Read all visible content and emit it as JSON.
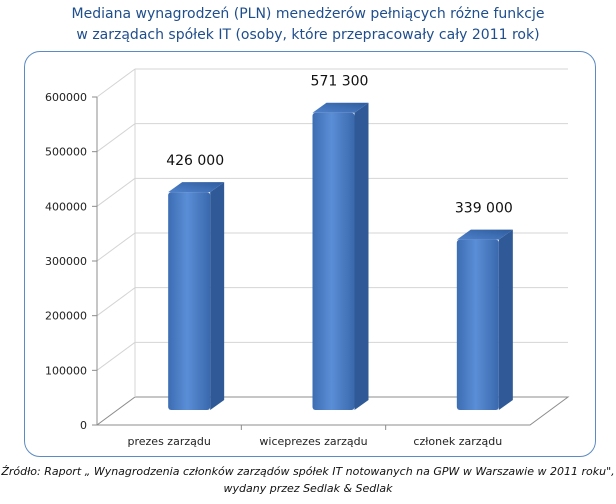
{
  "title_line1": "Mediana wynagrodzeń (PLN) menedżerów pełniących różne funkcje",
  "title_line2": "w zarządach spółek IT (osoby, które przepracowały cały 2011 rok)",
  "source_line1": "Źródło: Raport „ Wynagrodzenia członków zarządów spółek IT notowanych na GPW w Warszawie w 2011 roku\",",
  "source_line2": "wydany przez Sedlak & Sedlak",
  "chart_data": {
    "type": "bar",
    "categories": [
      "prezes zarządu",
      "wiceprezes zarządu",
      "członek zarządu"
    ],
    "values": [
      426000,
      571300,
      339000
    ],
    "data_labels": [
      "426 000",
      "571 300",
      "339 000"
    ],
    "ylim": [
      0,
      600000
    ],
    "y_ticks": [
      0,
      100000,
      200000,
      300000,
      400000,
      500000,
      600000
    ],
    "y_tick_labels": [
      "0",
      "100000",
      "200000",
      "300000",
      "400000",
      "500000",
      "600000"
    ],
    "grid": true,
    "legend": "none",
    "bar_color": "#4a7cc4",
    "bar_side_color": "#2f5a97"
  }
}
